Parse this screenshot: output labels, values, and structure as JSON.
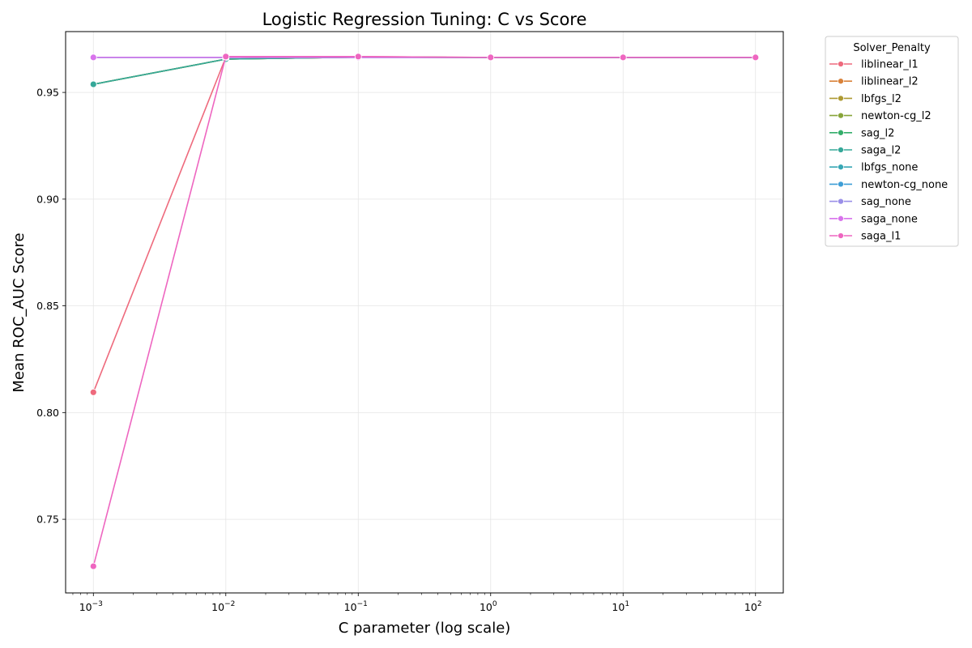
{
  "chart_data": {
    "type": "line",
    "title": "Logistic Regression Tuning: C vs Score",
    "xlabel": "C parameter (log scale)",
    "ylabel": "Mean ROC_AUC Score",
    "xscale": "log",
    "x": [
      0.001,
      0.01,
      0.1,
      1,
      10,
      100
    ],
    "x_tick_labels": [
      {
        "base": "10",
        "exp": "−3"
      },
      {
        "base": "10",
        "exp": "−2"
      },
      {
        "base": "10",
        "exp": "−1"
      },
      {
        "base": "10",
        "exp": "0"
      },
      {
        "base": "10",
        "exp": "1"
      },
      {
        "base": "10",
        "exp": "2"
      }
    ],
    "y_ticks": [
      0.75,
      0.8,
      0.85,
      0.9,
      0.95
    ],
    "y_tick_labels": [
      "0.75",
      "0.80",
      "0.85",
      "0.90",
      "0.95"
    ],
    "ylim": [
      0.7155,
      0.9785
    ],
    "xlim": [
      0.000617,
      162
    ],
    "grid": true,
    "legend": {
      "title": "Solver_Penalty",
      "placement": "outside-top-right"
    },
    "series": [
      {
        "name": "liblinear_l1",
        "color": "#ee6a7d",
        "values": [
          0.8095,
          0.9665,
          0.9668,
          0.9664,
          0.9664,
          0.9664
        ]
      },
      {
        "name": "liblinear_l2",
        "color": "#d9823a",
        "values": [
          0.9538,
          0.9656,
          0.9665,
          0.9664,
          0.9664,
          0.9664
        ]
      },
      {
        "name": "lbfgs_l2",
        "color": "#ae9a33",
        "values": [
          0.9538,
          0.9656,
          0.9665,
          0.9664,
          0.9664,
          0.9664
        ]
      },
      {
        "name": "newton-cg_l2",
        "color": "#88a53a",
        "values": [
          0.9538,
          0.9656,
          0.9665,
          0.9664,
          0.9664,
          0.9664
        ]
      },
      {
        "name": "sag_l2",
        "color": "#34ae6b",
        "values": [
          0.9538,
          0.9656,
          0.9665,
          0.9664,
          0.9664,
          0.9664
        ]
      },
      {
        "name": "saga_l2",
        "color": "#36a899",
        "values": [
          0.9538,
          0.9656,
          0.9665,
          0.9664,
          0.9664,
          0.9664
        ]
      },
      {
        "name": "lbfgs_none",
        "color": "#38a7b5",
        "values": [
          0.9664,
          0.9664,
          0.9664,
          0.9664,
          0.9664,
          0.9664
        ]
      },
      {
        "name": "newton-cg_none",
        "color": "#3e9ed6",
        "values": [
          0.9664,
          0.9664,
          0.9664,
          0.9664,
          0.9664,
          0.9664
        ]
      },
      {
        "name": "sag_none",
        "color": "#9a8fe8",
        "values": [
          0.9664,
          0.9664,
          0.9664,
          0.9664,
          0.9664,
          0.9664
        ]
      },
      {
        "name": "saga_none",
        "color": "#d873ec",
        "values": [
          0.9664,
          0.9664,
          0.9664,
          0.9664,
          0.9664,
          0.9664
        ]
      },
      {
        "name": "saga_l1",
        "color": "#ee66c0",
        "values": [
          0.728,
          0.9668,
          0.9668,
          0.9664,
          0.9664,
          0.9664
        ]
      }
    ]
  }
}
